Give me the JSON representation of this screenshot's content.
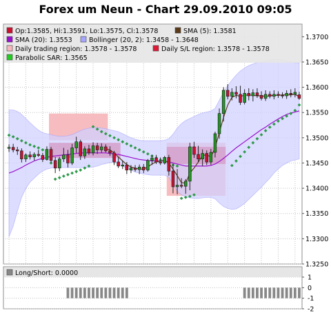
{
  "title": "Forex um Neun - Chart 29.09.2010 09:05",
  "colors": {
    "bull": "#1f9a1f",
    "bear": "#cc1030",
    "bollinger_fill": "#d2d2ff",
    "bollinger_line": "#a6a6ff",
    "sma20": "#9911cc",
    "sma5": "#5a3a18",
    "trading_region": "#f7b8bd",
    "sl_region": "#e01838",
    "sar": "#2e9a4a",
    "longshort": "#888888",
    "grid": "#c0c0c0"
  },
  "legend": {
    "ohlc": "Op:1.3585, Hi:1.3591, Lo:1.3575, Cl:1.3578",
    "sma5": "SMA (5): 1.3581",
    "sma20": "SMA (20): 1.3553",
    "bollinger": "Bollinger (20, 2): 1.3458 - 1.3648",
    "trading_region": "Daily trading region: 1.3578 - 1.3578",
    "sl_region": "Daily S/L region: 1.3578 - 1.3578",
    "sar": "Parabolic SAR: 1.3565",
    "longshort": "Long/Short: 0.0000"
  },
  "chart_data": [
    {
      "type": "candlestick",
      "ylim": [
        1.325,
        1.3725
      ],
      "y_ticks": [
        "1.3250",
        "1.3300",
        "1.3350",
        "1.3400",
        "1.3450",
        "1.3500",
        "1.3550",
        "1.3600",
        "1.3650",
        "1.3700"
      ],
      "grid": true,
      "candles": [
        {
          "o": 1.3479,
          "h": 1.3487,
          "l": 1.3472,
          "c": 1.3481
        },
        {
          "o": 1.3481,
          "h": 1.3488,
          "l": 1.3471,
          "c": 1.3476
        },
        {
          "o": 1.3476,
          "h": 1.3482,
          "l": 1.3466,
          "c": 1.3474
        },
        {
          "o": 1.3474,
          "h": 1.3479,
          "l": 1.3451,
          "c": 1.3458
        },
        {
          "o": 1.3458,
          "h": 1.3469,
          "l": 1.3452,
          "c": 1.3466
        },
        {
          "o": 1.3466,
          "h": 1.3473,
          "l": 1.3457,
          "c": 1.3462
        },
        {
          "o": 1.3462,
          "h": 1.3471,
          "l": 1.3455,
          "c": 1.3467
        },
        {
          "o": 1.3467,
          "h": 1.3476,
          "l": 1.3462,
          "c": 1.3465
        },
        {
          "o": 1.3465,
          "h": 1.347,
          "l": 1.3452,
          "c": 1.3457
        },
        {
          "o": 1.3457,
          "h": 1.3483,
          "l": 1.3455,
          "c": 1.3477
        },
        {
          "o": 1.3477,
          "h": 1.3482,
          "l": 1.345,
          "c": 1.3455
        },
        {
          "o": 1.3455,
          "h": 1.3462,
          "l": 1.343,
          "c": 1.344
        },
        {
          "o": 1.344,
          "h": 1.3462,
          "l": 1.3434,
          "c": 1.3458
        },
        {
          "o": 1.3458,
          "h": 1.348,
          "l": 1.3452,
          "c": 1.3466
        },
        {
          "o": 1.3466,
          "h": 1.3476,
          "l": 1.3441,
          "c": 1.345
        },
        {
          "o": 1.345,
          "h": 1.3488,
          "l": 1.3446,
          "c": 1.348
        },
        {
          "o": 1.348,
          "h": 1.3502,
          "l": 1.347,
          "c": 1.3492
        },
        {
          "o": 1.3492,
          "h": 1.3496,
          "l": 1.3456,
          "c": 1.3464
        },
        {
          "o": 1.3464,
          "h": 1.3483,
          "l": 1.3458,
          "c": 1.3478
        },
        {
          "o": 1.3478,
          "h": 1.3486,
          "l": 1.3466,
          "c": 1.347
        },
        {
          "o": 1.347,
          "h": 1.3491,
          "l": 1.3465,
          "c": 1.3484
        },
        {
          "o": 1.3484,
          "h": 1.349,
          "l": 1.3468,
          "c": 1.3476
        },
        {
          "o": 1.3476,
          "h": 1.3489,
          "l": 1.347,
          "c": 1.3482
        },
        {
          "o": 1.3482,
          "h": 1.3487,
          "l": 1.3471,
          "c": 1.3474
        },
        {
          "o": 1.3474,
          "h": 1.3483,
          "l": 1.3464,
          "c": 1.347
        },
        {
          "o": 1.347,
          "h": 1.3474,
          "l": 1.3446,
          "c": 1.3452
        },
        {
          "o": 1.3452,
          "h": 1.3461,
          "l": 1.344,
          "c": 1.3444
        },
        {
          "o": 1.3444,
          "h": 1.3455,
          "l": 1.3438,
          "c": 1.3446
        },
        {
          "o": 1.3446,
          "h": 1.3452,
          "l": 1.3428,
          "c": 1.3436
        },
        {
          "o": 1.3436,
          "h": 1.3446,
          "l": 1.343,
          "c": 1.344
        },
        {
          "o": 1.344,
          "h": 1.3446,
          "l": 1.3433,
          "c": 1.3437
        },
        {
          "o": 1.3437,
          "h": 1.3447,
          "l": 1.3428,
          "c": 1.3442
        },
        {
          "o": 1.3442,
          "h": 1.3448,
          "l": 1.343,
          "c": 1.3436
        },
        {
          "o": 1.3436,
          "h": 1.3458,
          "l": 1.3433,
          "c": 1.3455
        },
        {
          "o": 1.3455,
          "h": 1.3466,
          "l": 1.3446,
          "c": 1.346
        },
        {
          "o": 1.346,
          "h": 1.3466,
          "l": 1.3448,
          "c": 1.3452
        },
        {
          "o": 1.3452,
          "h": 1.3461,
          "l": 1.3446,
          "c": 1.345
        },
        {
          "o": 1.345,
          "h": 1.3464,
          "l": 1.3447,
          "c": 1.3461
        },
        {
          "o": 1.3461,
          "h": 1.3466,
          "l": 1.3425,
          "c": 1.3434
        },
        {
          "o": 1.3434,
          "h": 1.3448,
          "l": 1.339,
          "c": 1.3403
        },
        {
          "o": 1.3403,
          "h": 1.3438,
          "l": 1.3388,
          "c": 1.3406
        },
        {
          "o": 1.3406,
          "h": 1.342,
          "l": 1.34,
          "c": 1.3404
        },
        {
          "o": 1.3404,
          "h": 1.3418,
          "l": 1.3389,
          "c": 1.3414
        },
        {
          "o": 1.3414,
          "h": 1.349,
          "l": 1.3396,
          "c": 1.3482
        },
        {
          "o": 1.3482,
          "h": 1.3492,
          "l": 1.346,
          "c": 1.3467
        },
        {
          "o": 1.3467,
          "h": 1.3484,
          "l": 1.3452,
          "c": 1.3458
        },
        {
          "o": 1.3458,
          "h": 1.3477,
          "l": 1.3444,
          "c": 1.3469
        },
        {
          "o": 1.3469,
          "h": 1.3475,
          "l": 1.3446,
          "c": 1.3452
        },
        {
          "o": 1.3452,
          "h": 1.3478,
          "l": 1.3446,
          "c": 1.3471
        },
        {
          "o": 1.3471,
          "h": 1.3512,
          "l": 1.3461,
          "c": 1.3508
        },
        {
          "o": 1.3508,
          "h": 1.3558,
          "l": 1.3498,
          "c": 1.3548
        },
        {
          "o": 1.3548,
          "h": 1.36,
          "l": 1.3532,
          "c": 1.3594
        },
        {
          "o": 1.3594,
          "h": 1.3606,
          "l": 1.3576,
          "c": 1.3582
        },
        {
          "o": 1.3582,
          "h": 1.3598,
          "l": 1.3574,
          "c": 1.359
        },
        {
          "o": 1.359,
          "h": 1.3602,
          "l": 1.3578,
          "c": 1.3586
        },
        {
          "o": 1.3586,
          "h": 1.3603,
          "l": 1.3565,
          "c": 1.357
        },
        {
          "o": 1.357,
          "h": 1.3596,
          "l": 1.3566,
          "c": 1.3588
        },
        {
          "o": 1.3588,
          "h": 1.3598,
          "l": 1.3574,
          "c": 1.3583
        },
        {
          "o": 1.3583,
          "h": 1.3596,
          "l": 1.3572,
          "c": 1.3589
        },
        {
          "o": 1.3589,
          "h": 1.3598,
          "l": 1.3579,
          "c": 1.3584
        },
        {
          "o": 1.3584,
          "h": 1.3592,
          "l": 1.3574,
          "c": 1.3578
        },
        {
          "o": 1.3578,
          "h": 1.3594,
          "l": 1.3573,
          "c": 1.3586
        },
        {
          "o": 1.3586,
          "h": 1.3592,
          "l": 1.3578,
          "c": 1.3582
        },
        {
          "o": 1.3582,
          "h": 1.3594,
          "l": 1.3576,
          "c": 1.3586
        },
        {
          "o": 1.3586,
          "h": 1.3592,
          "l": 1.3579,
          "c": 1.3584
        },
        {
          "o": 1.3584,
          "h": 1.359,
          "l": 1.3578,
          "c": 1.3583
        },
        {
          "o": 1.3583,
          "h": 1.3594,
          "l": 1.3577,
          "c": 1.3588
        },
        {
          "o": 1.3588,
          "h": 1.3596,
          "l": 1.358,
          "c": 1.3586
        },
        {
          "o": 1.3586,
          "h": 1.3598,
          "l": 1.358,
          "c": 1.359
        },
        {
          "o": 1.3585,
          "h": 1.3591,
          "l": 1.3575,
          "c": 1.3578
        }
      ],
      "bollinger_upper": [
        1.3555,
        1.3555,
        1.3552,
        1.3546,
        1.3538,
        1.353,
        1.3522,
        1.3515,
        1.351,
        1.3508,
        1.3506,
        1.3504,
        1.3503,
        1.3503,
        1.3504,
        1.3506,
        1.351,
        1.3514,
        1.3517,
        1.3519,
        1.352,
        1.352,
        1.3519,
        1.3518,
        1.3516,
        1.3514,
        1.3512,
        1.3508,
        1.3504,
        1.35,
        1.3497,
        1.3495,
        1.3494,
        1.3494,
        1.3494,
        1.3494,
        1.3494,
        1.3495,
        1.3498,
        1.3507,
        1.3519,
        1.3528,
        1.3534,
        1.3538,
        1.3542,
        1.3546,
        1.3549,
        1.3551,
        1.3553,
        1.3558,
        1.3574,
        1.359,
        1.3603,
        1.3614,
        1.3624,
        1.3632,
        1.3638,
        1.3643,
        1.3646,
        1.3649,
        1.365,
        1.3652,
        1.3654,
        1.3655,
        1.3655,
        1.3654,
        1.3652,
        1.365,
        1.3649,
        1.3648
      ],
      "bollinger_lower": [
        1.3304,
        1.3325,
        1.3355,
        1.3382,
        1.34,
        1.3412,
        1.342,
        1.3428,
        1.3434,
        1.3438,
        1.344,
        1.3441,
        1.3441,
        1.3441,
        1.3441,
        1.3441,
        1.3441,
        1.3441,
        1.3441,
        1.3441,
        1.3442,
        1.3444,
        1.3447,
        1.3449,
        1.3451,
        1.3452,
        1.3449,
        1.3444,
        1.344,
        1.3436,
        1.3432,
        1.343,
        1.3428,
        1.3427,
        1.3426,
        1.3426,
        1.3426,
        1.3426,
        1.3422,
        1.3408,
        1.3394,
        1.3387,
        1.3383,
        1.3381,
        1.338,
        1.338,
        1.3381,
        1.3382,
        1.3382,
        1.3379,
        1.3371,
        1.3364,
        1.336,
        1.3358,
        1.3359,
        1.3364,
        1.337,
        1.3378,
        1.3386,
        1.3394,
        1.3402,
        1.3411,
        1.342,
        1.343,
        1.3438,
        1.3445,
        1.345,
        1.3454,
        1.3456,
        1.3458
      ],
      "sma20": [
        1.343,
        1.3433,
        1.3437,
        1.3441,
        1.3446,
        1.345,
        1.3454,
        1.3457,
        1.3459,
        1.3461,
        1.3463,
        1.3464,
        1.3465,
        1.3466,
        1.3467,
        1.3468,
        1.3469,
        1.347,
        1.347,
        1.347,
        1.347,
        1.347,
        1.347,
        1.347,
        1.3469,
        1.3468,
        1.3467,
        1.3465,
        1.3463,
        1.3461,
        1.3459,
        1.3457,
        1.3456,
        1.3455,
        1.3454,
        1.3454,
        1.3454,
        1.3454,
        1.3452,
        1.345,
        1.3448,
        1.3446,
        1.3444,
        1.3444,
        1.3444,
        1.3444,
        1.3444,
        1.3444,
        1.3445,
        1.3448,
        1.3453,
        1.3459,
        1.3466,
        1.3473,
        1.348,
        1.3486,
        1.3492,
        1.3498,
        1.3504,
        1.351,
        1.3516,
        1.3521,
        1.3527,
        1.3532,
        1.3537,
        1.3542,
        1.3546,
        1.3549,
        1.3551,
        1.3553
      ],
      "sma5_start": 23,
      "sma5": [
        1.3478,
        1.3476,
        1.347,
        1.3462,
        1.3454,
        1.3447,
        1.3442,
        1.344,
        1.3438,
        1.3438,
        1.3442,
        1.3448,
        1.3452,
        1.3454,
        1.3455,
        1.345,
        1.3438,
        1.3425,
        1.3411,
        1.341,
        1.343,
        1.344,
        1.3452,
        1.3465,
        1.3466,
        1.3462,
        1.348,
        1.351,
        1.354,
        1.3565,
        1.358,
        1.3584,
        1.3582,
        1.3584,
        1.3585,
        1.3584,
        1.3583,
        1.3583,
        1.3582,
        1.3583,
        1.3584,
        1.3584,
        1.3585,
        1.3585,
        1.3585,
        1.3586,
        1.3581
      ],
      "sar": [
        1.3505,
        1.3502,
        1.3498,
        1.3494,
        1.349,
        1.3486,
        1.3483,
        1.348,
        1.3476,
        1.3472,
        1.345,
        1.3418,
        1.3421,
        1.3424,
        1.3427,
        1.343,
        1.3433,
        1.3436,
        1.344,
        1.3444,
        1.3522,
        1.3517,
        1.3512,
        1.3508,
        1.3504,
        1.35,
        1.3496,
        1.3492,
        1.3488,
        1.3484,
        1.348,
        1.3476,
        1.3472,
        1.3468,
        1.3464,
        1.346,
        1.3456,
        1.3452,
        1.3449,
        1.3446,
        1.3444,
        1.338,
        1.3382,
        1.3384,
        1.3387,
        null,
        null,
        null,
        null,
        null,
        null,
        null,
        null,
        1.3445,
        1.3454,
        1.3463,
        1.3472,
        1.3481,
        1.349,
        1.3498,
        1.3506,
        1.3514,
        1.3521,
        1.3527,
        1.3533,
        1.3538,
        1.3543,
        1.3548,
        1.3554,
        1.3565
      ],
      "trading_region": {
        "start": 10,
        "end": 23,
        "low": 1.3495,
        "high": 1.3548
      },
      "sl_region_1": {
        "start": 10,
        "end": 26,
        "low": 1.346,
        "high": 1.349
      },
      "trading_region_2": {
        "start": 38,
        "end": 51,
        "low": 1.3385,
        "high": 1.349
      },
      "sl_region_2": {
        "start": 38,
        "end": 51,
        "low": 1.3448,
        "high": 1.3482
      }
    },
    {
      "type": "bar",
      "ylim": [
        -2,
        1
      ],
      "y_ticks": [
        "1",
        "0",
        "-1",
        "-2"
      ],
      "grid": true,
      "values": [
        0,
        0,
        0,
        0,
        0,
        0,
        0,
        0,
        0,
        0,
        0,
        0,
        0,
        0,
        -1,
        -1,
        -1,
        -1,
        -1,
        -1,
        -1,
        -1,
        -1,
        -1,
        -1,
        -1,
        -1,
        -1,
        -1,
        0,
        0,
        0,
        0,
        0,
        0,
        0,
        0,
        0,
        0,
        0,
        0,
        0,
        0,
        0,
        0,
        0,
        0,
        0,
        0,
        0,
        0,
        0,
        0,
        0,
        0,
        0,
        -1,
        -1,
        -1,
        -1,
        -1,
        -1,
        -1,
        -1,
        -1,
        -1,
        -1,
        -1,
        -1,
        -1
      ]
    }
  ]
}
